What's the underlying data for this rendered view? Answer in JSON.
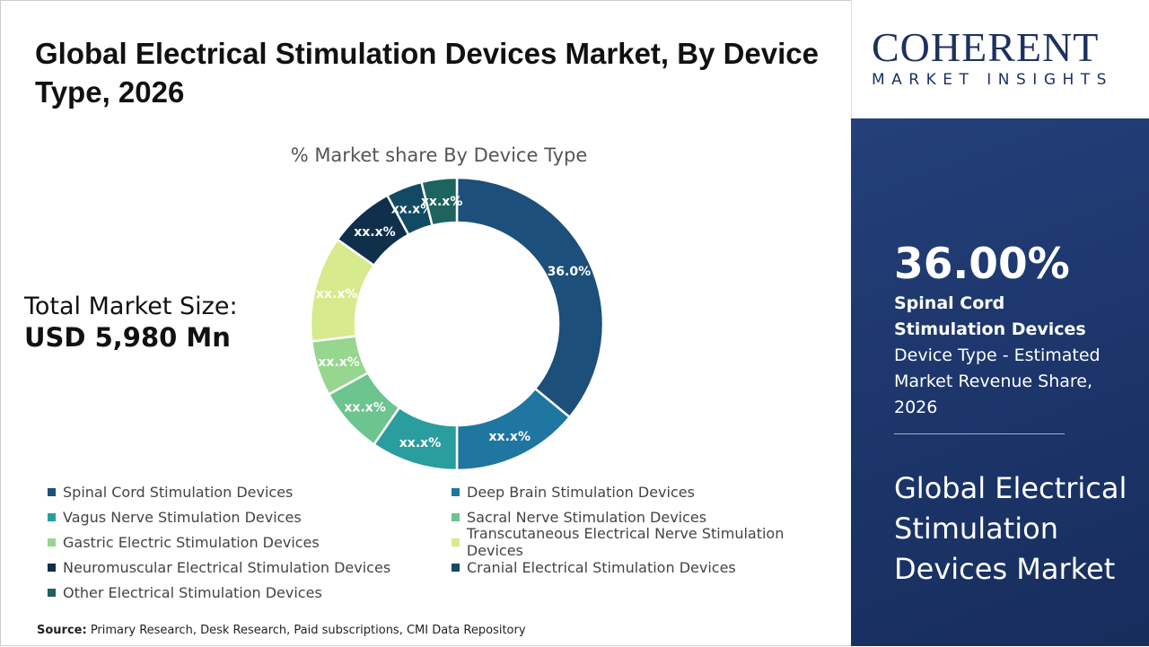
{
  "title": "Global Electrical Stimulation Devices Market, By Device Type, 2026",
  "total": {
    "label": "Total Market Size:",
    "value": "USD 5,980 Mn"
  },
  "source": {
    "label": "Source:",
    "text": " Primary Research, Desk Research, Paid subscriptions, CMI Data Repository"
  },
  "logo": {
    "name": "COHERENT",
    "tagline": "MARKET INSIGHTS"
  },
  "panel": {
    "percent": "36.00%",
    "bold": "Spinal Cord Stimulation Devices",
    "rest": " Device Type - Estimated Market Revenue Share, 2026",
    "market": "Global Electrical Stimulation Devices Market"
  },
  "chart_data": {
    "type": "pie",
    "donut": true,
    "title": "% Market share By Device Type",
    "legend_position": "bottom",
    "categories": [
      "Spinal Cord Stimulation Devices",
      "Deep Brain Stimulation Devices",
      "Vagus Nerve Stimulation Devices",
      "Sacral Nerve Stimulation Devices",
      "Gastric Electric Stimulation Devices",
      "Transcutaneous Electrical Nerve Stimulation Devices",
      "Neuromuscular Electrical Stimulation Devices",
      "Cranial Electrical Stimulation Devices",
      "Other Electrical Stimulation Devices"
    ],
    "values": [
      36.0,
      14.0,
      9.6,
      7.4,
      6.1,
      11.7,
      7.3,
      4.0,
      3.9
    ],
    "data_labels": [
      "36.0%",
      "xx.x%",
      "xx.x%",
      "xx.x%",
      "xx.x%",
      "xx.x%",
      "xx.x%",
      "xx.x%",
      "xx.x%"
    ],
    "colors": [
      "#1c4f7a",
      "#1f76a0",
      "#2a9d9e",
      "#6cc48e",
      "#96d68f",
      "#d7ea8d",
      "#0f2f4b",
      "#134a63",
      "#1d6360"
    ]
  }
}
